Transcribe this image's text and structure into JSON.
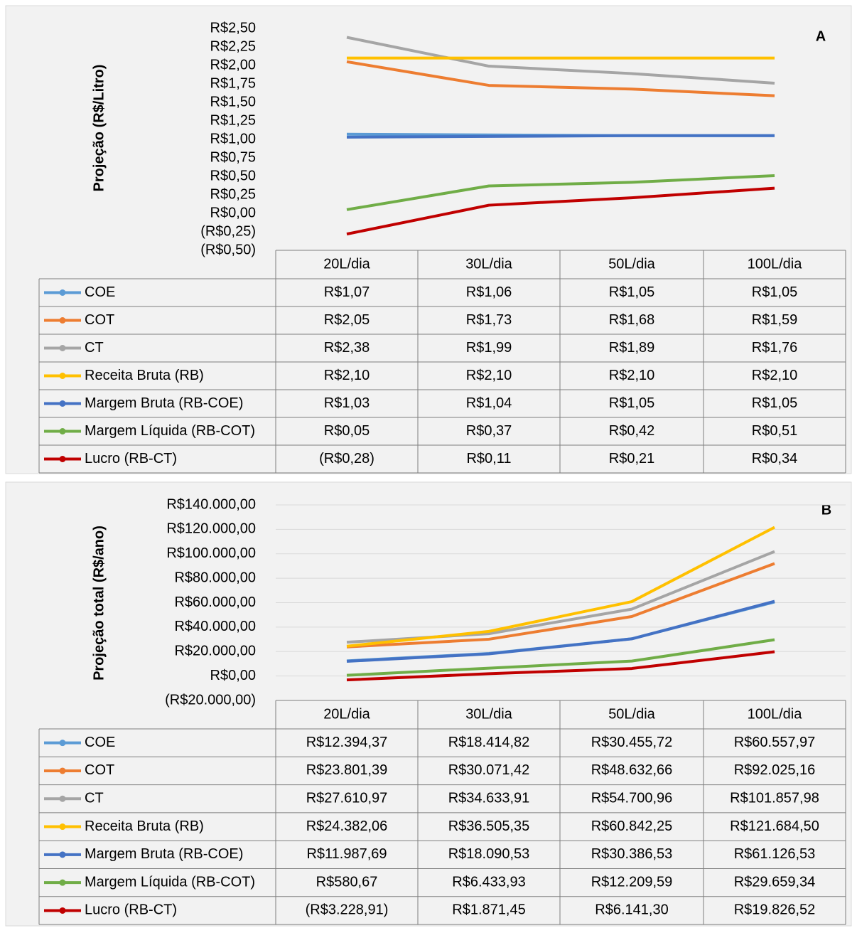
{
  "chart_data": [
    {
      "type": "line",
      "annotation": "A",
      "y_label": "Projeção (R$/Litro)",
      "categories": [
        "20L/dia",
        "30L/dia",
        "50L/dia",
        "100L/dia"
      ],
      "series": [
        {
          "name": "COE",
          "color": "#5b9bd5",
          "values": [
            1.07,
            1.06,
            1.05,
            1.05
          ],
          "value_labels": [
            "R$1,07",
            "R$1,06",
            "R$1,05",
            "R$1,05"
          ]
        },
        {
          "name": "COT",
          "color": "#ed7d31",
          "values": [
            2.05,
            1.73,
            1.68,
            1.59
          ],
          "value_labels": [
            "R$2,05",
            "R$1,73",
            "R$1,68",
            "R$1,59"
          ]
        },
        {
          "name": "CT",
          "color": "#a5a5a5",
          "values": [
            2.38,
            1.99,
            1.89,
            1.76
          ],
          "value_labels": [
            "R$2,38",
            "R$1,99",
            "R$1,89",
            "R$1,76"
          ]
        },
        {
          "name": "Receita Bruta (RB)",
          "color": "#ffc000",
          "values": [
            2.1,
            2.1,
            2.1,
            2.1
          ],
          "value_labels": [
            "R$2,10",
            "R$2,10",
            "R$2,10",
            "R$2,10"
          ]
        },
        {
          "name": "Margem Bruta (RB-COE)",
          "color": "#4472c4",
          "values": [
            1.03,
            1.04,
            1.05,
            1.05
          ],
          "value_labels": [
            "R$1,03",
            "R$1,04",
            "R$1,05",
            "R$1,05"
          ]
        },
        {
          "name": "Margem Líquida (RB-COT)",
          "color": "#70ad47",
          "values": [
            0.05,
            0.37,
            0.42,
            0.51
          ],
          "value_labels": [
            "R$0,05",
            "R$0,37",
            "R$0,42",
            "R$0,51"
          ]
        },
        {
          "name": "Lucro (RB-CT)",
          "color": "#c00000",
          "values": [
            -0.28,
            0.11,
            0.21,
            0.34
          ],
          "value_labels": [
            "(R$0,28)",
            "R$0,11",
            "R$0,21",
            "R$0,34"
          ]
        }
      ],
      "ylim": [
        -0.5,
        2.5
      ],
      "yticks": [
        {
          "value": 2.5,
          "label": "R$2,50"
        },
        {
          "value": 2.25,
          "label": "R$2,25"
        },
        {
          "value": 2,
          "label": "R$2,00"
        },
        {
          "value": 1.75,
          "label": "R$1,75"
        },
        {
          "value": 1.5,
          "label": "R$1,50"
        },
        {
          "value": 1.25,
          "label": "R$1,25"
        },
        {
          "value": 1,
          "label": "R$1,00"
        },
        {
          "value": 0.75,
          "label": "R$0,75"
        },
        {
          "value": 0.5,
          "label": "R$0,50"
        },
        {
          "value": 0.25,
          "label": "R$0,25"
        },
        {
          "value": 0,
          "label": "R$0,00"
        },
        {
          "value": -0.25,
          "label": "(R$0,25)"
        },
        {
          "value": -0.5,
          "label": "(R$0,50)"
        }
      ],
      "negative_tick_color": "#ff0000",
      "grid": false
    },
    {
      "type": "line",
      "annotation": "B",
      "y_label": "Projeção total (R$/ano)",
      "categories": [
        "20L/dia",
        "30L/dia",
        "50L/dia",
        "100L/dia"
      ],
      "series": [
        {
          "name": "COE",
          "color": "#5b9bd5",
          "values": [
            12394.37,
            18414.82,
            30455.72,
            60557.97
          ],
          "value_labels": [
            "R$12.394,37",
            "R$18.414,82",
            "R$30.455,72",
            "R$60.557,97"
          ]
        },
        {
          "name": "COT",
          "color": "#ed7d31",
          "values": [
            23801.39,
            30071.42,
            48632.66,
            92025.16
          ],
          "value_labels": [
            "R$23.801,39",
            "R$30.071,42",
            "R$48.632,66",
            "R$92.025,16"
          ]
        },
        {
          "name": "CT",
          "color": "#a5a5a5",
          "values": [
            27610.97,
            34633.91,
            54700.96,
            101857.98
          ],
          "value_labels": [
            "R$27.610,97",
            "R$34.633,91",
            "R$54.700,96",
            "R$101.857,98"
          ]
        },
        {
          "name": "Receita Bruta (RB)",
          "color": "#ffc000",
          "values": [
            24382.06,
            36505.35,
            60842.25,
            121684.5
          ],
          "value_labels": [
            "R$24.382,06",
            "R$36.505,35",
            "R$60.842,25",
            "R$121.684,50"
          ]
        },
        {
          "name": "Margem Bruta (RB-COE)",
          "color": "#4472c4",
          "values": [
            11987.69,
            18090.53,
            30386.53,
            61126.53
          ],
          "value_labels": [
            "R$11.987,69",
            "R$18.090,53",
            "R$30.386,53",
            "R$61.126,53"
          ]
        },
        {
          "name": "Margem Líquida (RB-COT)",
          "color": "#70ad47",
          "values": [
            580.67,
            6433.93,
            12209.59,
            29659.34
          ],
          "value_labels": [
            "R$580,67",
            "R$6.433,93",
            "R$12.209,59",
            "R$29.659,34"
          ]
        },
        {
          "name": "Lucro (RB-CT)",
          "color": "#c00000",
          "values": [
            -3228.91,
            1871.45,
            6141.3,
            19826.52
          ],
          "value_labels": [
            "(R$3.228,91)",
            "R$1.871,45",
            "R$6.141,30",
            "R$19.826,52"
          ]
        }
      ],
      "ylim": [
        -20000,
        140000
      ],
      "yticks": [
        {
          "value": 140000,
          "label": "R$140.000,00"
        },
        {
          "value": 120000,
          "label": "R$120.000,00"
        },
        {
          "value": 100000,
          "label": "R$100.000,00"
        },
        {
          "value": 80000,
          "label": "R$80.000,00"
        },
        {
          "value": 60000,
          "label": "R$60.000,00"
        },
        {
          "value": 40000,
          "label": "R$40.000,00"
        },
        {
          "value": 20000,
          "label": "R$20.000,00"
        },
        {
          "value": 0,
          "label": "R$0,00"
        },
        {
          "value": -20000,
          "label": "(R$20.000,00)"
        }
      ],
      "negative_tick_color": "#ff0000",
      "grid": true
    }
  ]
}
